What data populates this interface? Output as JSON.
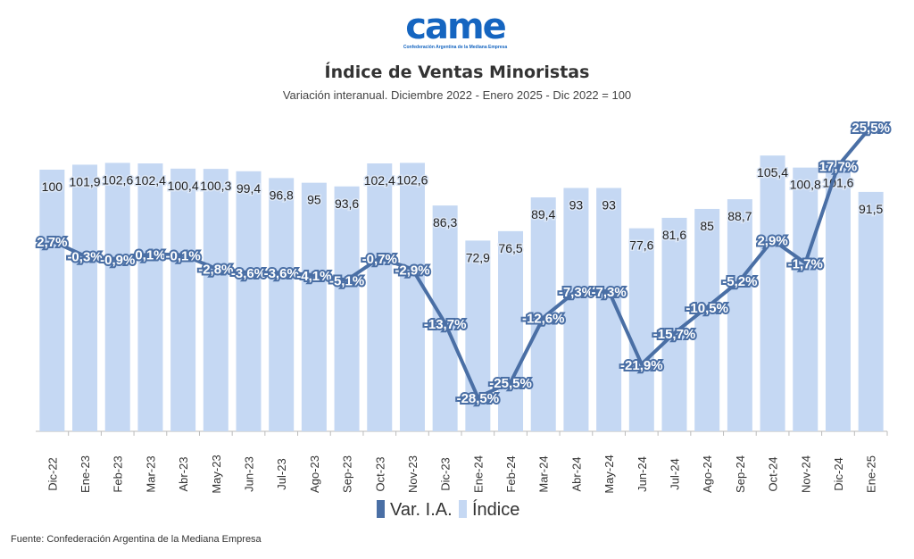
{
  "logo": {
    "text": "came",
    "tagline": "Confederación Argentina de la Mediana Empresa"
  },
  "source": "Fuente: Confederación Argentina de la Mediana Empresa",
  "chart_data": {
    "type": "bar+line",
    "title": "Índice de Ventas Minoristas",
    "subtitle": "Variación interanual. Diciembre 2022 - Enero 2025 - Dic 2022 = 100",
    "categories": [
      "Dic-22",
      "Ene-23",
      "Feb-23",
      "Mar-23",
      "Abr-23",
      "May-23",
      "Jun-23",
      "Jul-23",
      "Ago-23",
      "Sep-23",
      "Oct-23",
      "Nov-23",
      "Dic-23",
      "Ene-24",
      "Feb-24",
      "Mar-24",
      "Abr-24",
      "May-24",
      "Jun-24",
      "Jul-24",
      "Ago-24",
      "Sep-24",
      "Oct-24",
      "Nov-24",
      "Dic-24",
      "Ene-25"
    ],
    "series": [
      {
        "name": "Índice",
        "type": "bar",
        "color": "#c5d8f3",
        "values": [
          100,
          101.9,
          102.6,
          102.4,
          100.4,
          100.3,
          99.4,
          96.8,
          95,
          93.6,
          102.4,
          102.6,
          86.3,
          72.9,
          76.5,
          89.4,
          93,
          93,
          77.6,
          81.6,
          85,
          88.7,
          105.4,
          100.8,
          101.6,
          91.5
        ],
        "labels": [
          "100",
          "101,9",
          "102,6",
          "102,4",
          "100,4",
          "100,3",
          "99,4",
          "96,8",
          "95",
          "93,6",
          "102,4",
          "102,6",
          "86,3",
          "72,9",
          "76,5",
          "89,4",
          "93",
          "93",
          "77,6",
          "81,6",
          "85",
          "88,7",
          "105,4",
          "100,8",
          "101,6",
          "91,5"
        ]
      },
      {
        "name": "Var. I.A.",
        "type": "line",
        "color": "#4a6fa5",
        "values": [
          2.7,
          -0.3,
          -0.9,
          0.1,
          -0.1,
          -2.8,
          -3.6,
          -3.6,
          -4.1,
          -5.1,
          -0.7,
          -2.9,
          -13.7,
          -28.5,
          -25.5,
          -12.6,
          -7.3,
          -7.3,
          -21.9,
          -15.7,
          -10.5,
          -5.2,
          2.9,
          -1.7,
          17.7,
          25.5
        ],
        "labels": [
          "2,7%",
          "-0,3%",
          "-0,9%",
          "0,1%",
          "-0,1%",
          "-2,8%",
          "-3,6%",
          "-3,6%",
          "-4,1%",
          "-5,1%",
          "-0,7%",
          "-2,9%",
          "-13,7%",
          "-28,5%",
          "-25,5%",
          "-12,6%",
          "-7,3%",
          "-7,3%",
          "-21,9%",
          "-15,7%",
          "-10,5%",
          "-5,2%",
          "2,9%",
          "-1,7%",
          "17,7%",
          "25,5%"
        ]
      }
    ],
    "legend": [
      "Var. I.A.",
      "Índice"
    ],
    "legend_position": "bottom"
  }
}
